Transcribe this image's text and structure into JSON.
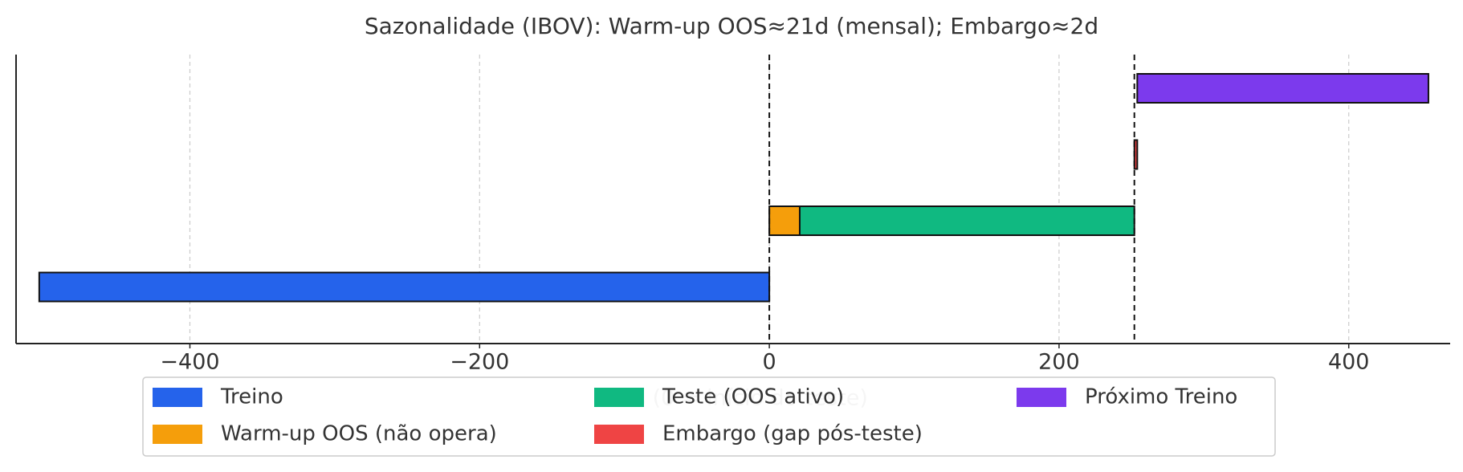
{
  "chart_data": {
    "type": "timeline",
    "title": "Sazonalidade (IBOV): Warm-up OOS≈21d (mensal); Embargo≈2d",
    "xlabel": "Dias (0 = início do teste)",
    "series": [
      {
        "name": "Treino",
        "color": "#2563eb",
        "start": -504,
        "end": 0
      },
      {
        "name": "Warm-up OOS (não opera)",
        "color": "#f59e0b",
        "start": 0,
        "end": 21
      },
      {
        "name": "Teste (OOS ativo)",
        "color": "#10b981",
        "start": 21,
        "end": 252
      },
      {
        "name": "Embargo (gap pós-teste)",
        "color": "#ef4444",
        "start": 252,
        "end": 254
      },
      {
        "name": "Próximo Treino",
        "color": "#7c3aed",
        "start": 254,
        "end": 455
      }
    ],
    "vlines": [
      0,
      252
    ],
    "xlim": [
      -520,
      470
    ],
    "xticks": [
      {
        "value": -400,
        "label": "−400"
      },
      {
        "value": -200,
        "label": "−200"
      },
      0,
      200,
      400
    ],
    "grid": true
  }
}
